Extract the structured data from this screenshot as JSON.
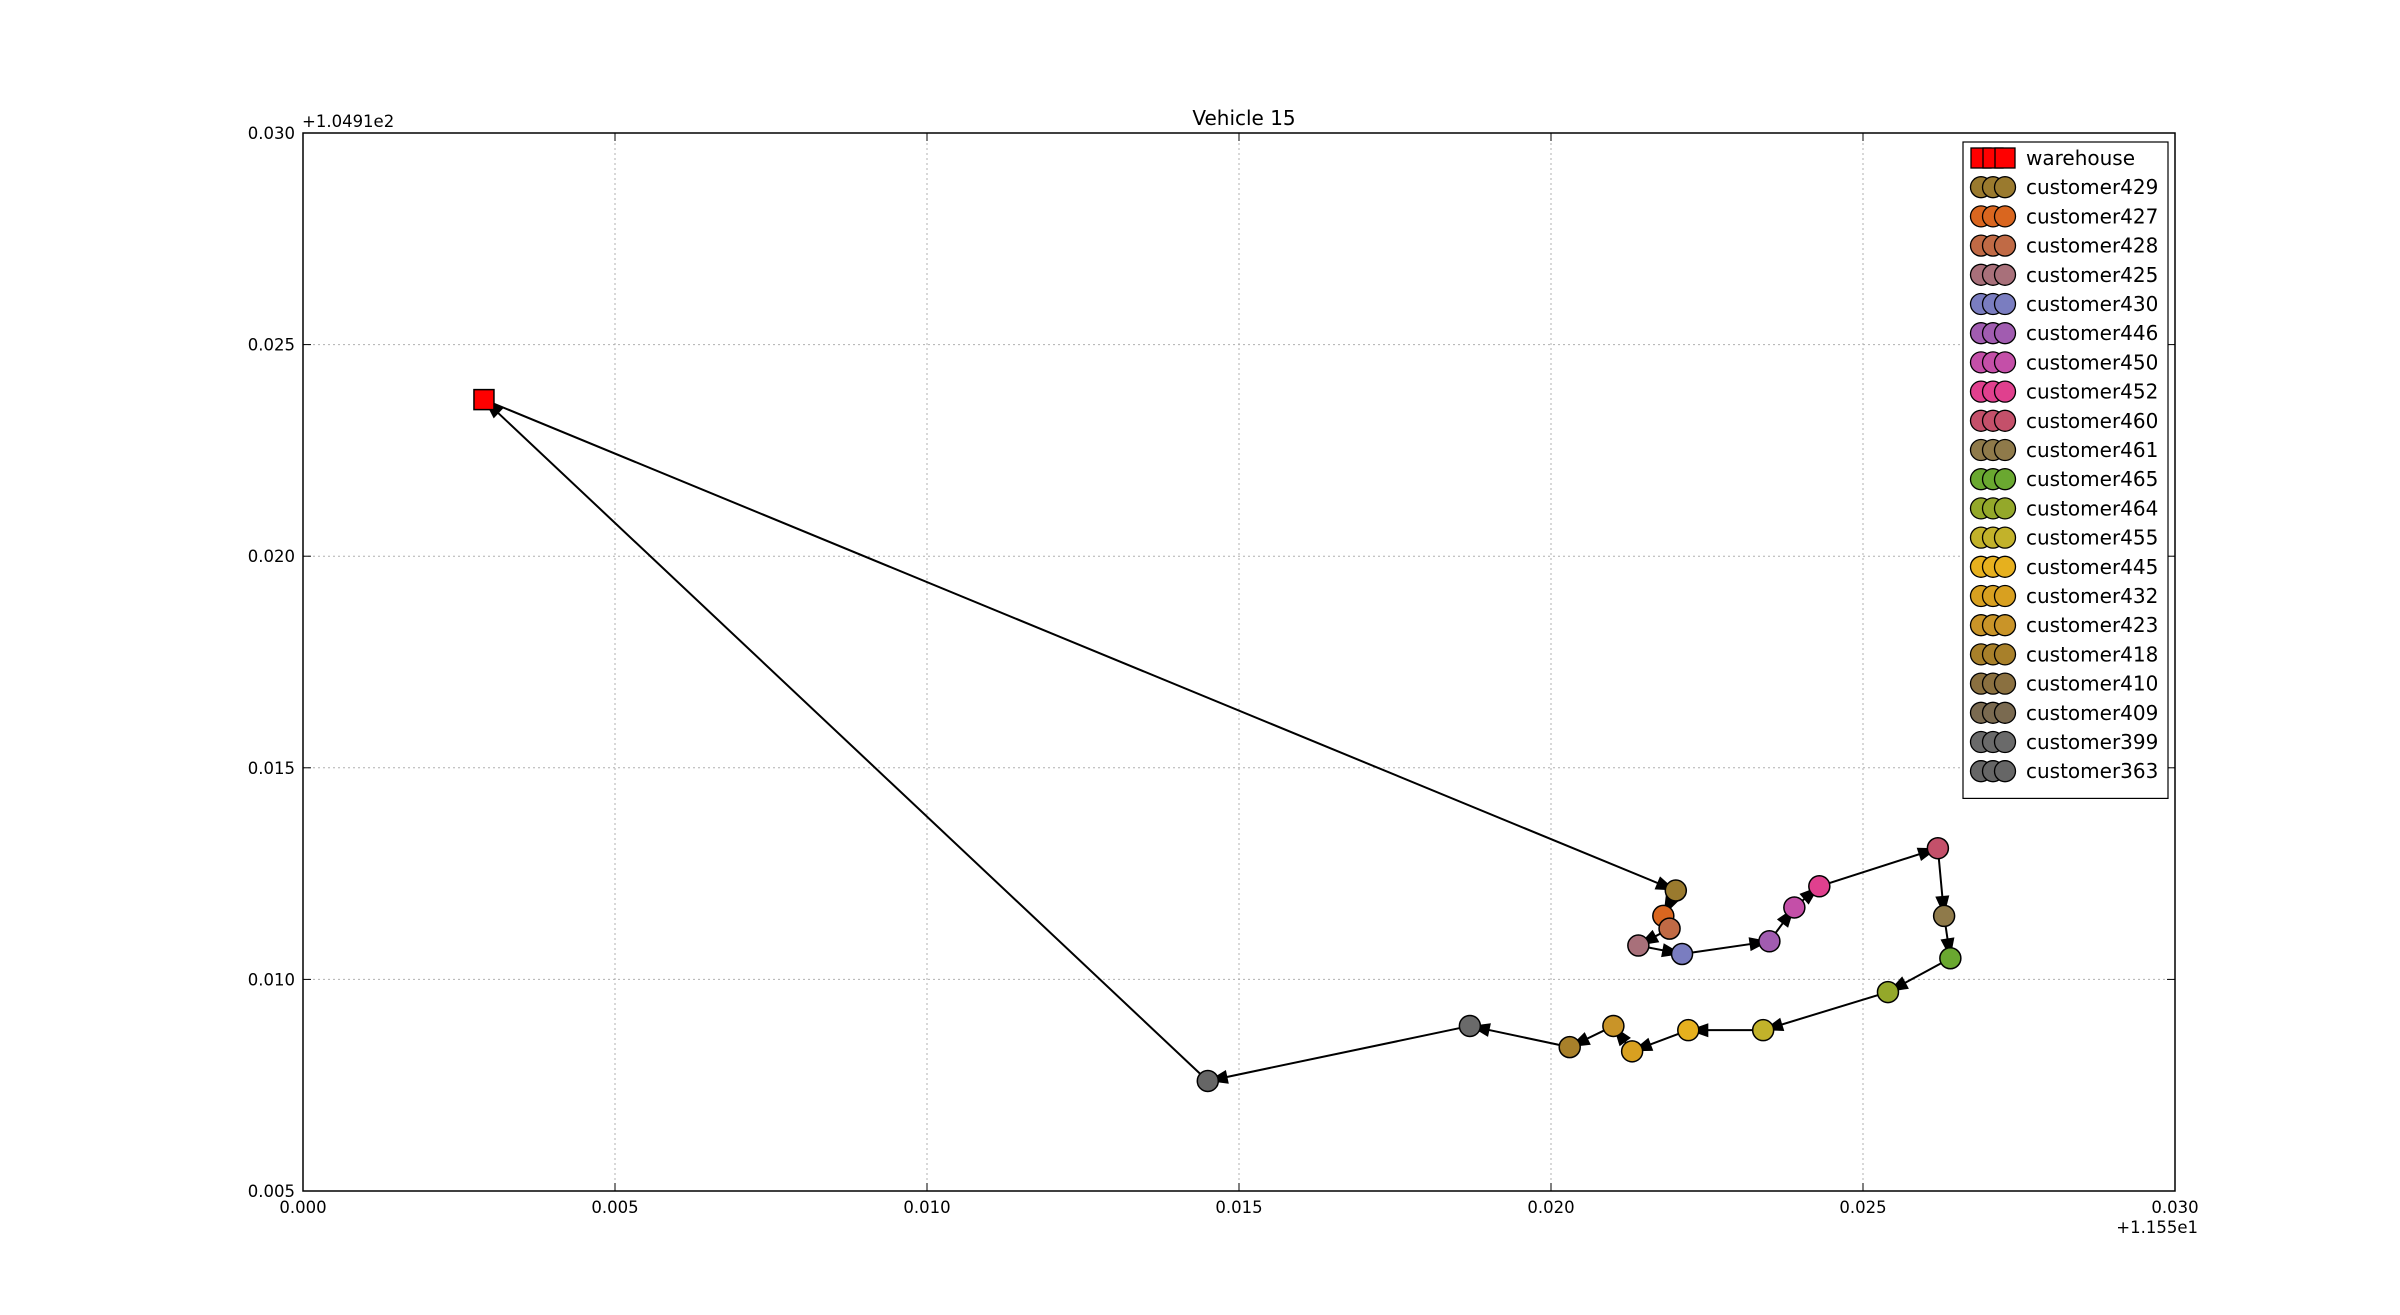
{
  "chart_data": {
    "type": "scatter",
    "title": "Vehicle 15",
    "xlabel": "",
    "ylabel": "",
    "x_offset_label": "+1.155e1",
    "y_offset_label": "+1.0491e2",
    "xlim": [
      0.0,
      0.03
    ],
    "ylim": [
      0.005,
      0.03
    ],
    "xticks": [
      0.0,
      0.005,
      0.01,
      0.015,
      0.02,
      0.025,
      0.03
    ],
    "yticks": [
      0.005,
      0.01,
      0.015,
      0.02,
      0.025,
      0.03
    ],
    "xtick_labels": [
      "0.000",
      "0.005",
      "0.010",
      "0.015",
      "0.020",
      "0.025",
      "0.030"
    ],
    "ytick_labels": [
      "0.005",
      "0.010",
      "0.015",
      "0.020",
      "0.025",
      "0.030"
    ],
    "grid": true,
    "legend_position": "top-right",
    "series": [
      {
        "name": "warehouse",
        "marker": "square",
        "color": "#ff0000",
        "x": 0.0029,
        "y": 0.0237
      },
      {
        "name": "customer429",
        "marker": "circle",
        "color": "#9a7a2e",
        "x": 0.022,
        "y": 0.0121
      },
      {
        "name": "customer427",
        "marker": "circle",
        "color": "#d9661f",
        "x": 0.0218,
        "y": 0.0115
      },
      {
        "name": "customer428",
        "marker": "circle",
        "color": "#c06a45",
        "x": 0.0219,
        "y": 0.0112
      },
      {
        "name": "customer425",
        "marker": "circle",
        "color": "#a8707a",
        "x": 0.0214,
        "y": 0.0108
      },
      {
        "name": "customer430",
        "marker": "circle",
        "color": "#7a7dc0",
        "x": 0.0221,
        "y": 0.0106
      },
      {
        "name": "customer446",
        "marker": "circle",
        "color": "#a15cb0",
        "x": 0.0235,
        "y": 0.0109
      },
      {
        "name": "customer450",
        "marker": "circle",
        "color": "#c44fa8",
        "x": 0.0239,
        "y": 0.0117
      },
      {
        "name": "customer452",
        "marker": "circle",
        "color": "#e0408e",
        "x": 0.0243,
        "y": 0.0122
      },
      {
        "name": "customer460",
        "marker": "circle",
        "color": "#c4506a",
        "x": 0.0262,
        "y": 0.0131
      },
      {
        "name": "customer461",
        "marker": "circle",
        "color": "#8f7a4a",
        "x": 0.0263,
        "y": 0.0115
      },
      {
        "name": "customer465",
        "marker": "circle",
        "color": "#6aa830",
        "x": 0.0264,
        "y": 0.0105
      },
      {
        "name": "customer464",
        "marker": "circle",
        "color": "#94a82a",
        "x": 0.0254,
        "y": 0.0097
      },
      {
        "name": "customer455",
        "marker": "circle",
        "color": "#c2b22a",
        "x": 0.0234,
        "y": 0.0088
      },
      {
        "name": "customer445",
        "marker": "circle",
        "color": "#e6b01e",
        "x": 0.0222,
        "y": 0.0088
      },
      {
        "name": "customer432",
        "marker": "circle",
        "color": "#d8a020",
        "x": 0.0213,
        "y": 0.0083
      },
      {
        "name": "customer423",
        "marker": "circle",
        "color": "#c99428",
        "x": 0.021,
        "y": 0.0089
      },
      {
        "name": "customer418",
        "marker": "circle",
        "color": "#a8802a",
        "x": 0.0203,
        "y": 0.0084
      },
      {
        "name": "customer410",
        "marker": "circle",
        "color": "#8a7040",
        "x": null,
        "y": null
      },
      {
        "name": "customer409",
        "marker": "circle",
        "color": "#7a6a50",
        "x": null,
        "y": null
      },
      {
        "name": "customer399",
        "marker": "circle",
        "color": "#6a6a6a",
        "x": 0.0187,
        "y": 0.0089
      },
      {
        "name": "customer363",
        "marker": "circle",
        "color": "#666666",
        "x": 0.0145,
        "y": 0.0076
      }
    ],
    "route": [
      [
        0.0029,
        0.0237
      ],
      [
        0.022,
        0.0121
      ],
      [
        0.0218,
        0.0115
      ],
      [
        0.0219,
        0.0112
      ],
      [
        0.0214,
        0.0108
      ],
      [
        0.0221,
        0.0106
      ],
      [
        0.0235,
        0.0109
      ],
      [
        0.0239,
        0.0117
      ],
      [
        0.0243,
        0.0122
      ],
      [
        0.0262,
        0.0131
      ],
      [
        0.0263,
        0.0115
      ],
      [
        0.0264,
        0.0105
      ],
      [
        0.0254,
        0.0097
      ],
      [
        0.0234,
        0.0088
      ],
      [
        0.0222,
        0.0088
      ],
      [
        0.0213,
        0.0083
      ],
      [
        0.021,
        0.0089
      ],
      [
        0.0203,
        0.0084
      ],
      [
        0.0187,
        0.0089
      ],
      [
        0.0145,
        0.0076
      ],
      [
        0.0029,
        0.0237
      ]
    ]
  }
}
